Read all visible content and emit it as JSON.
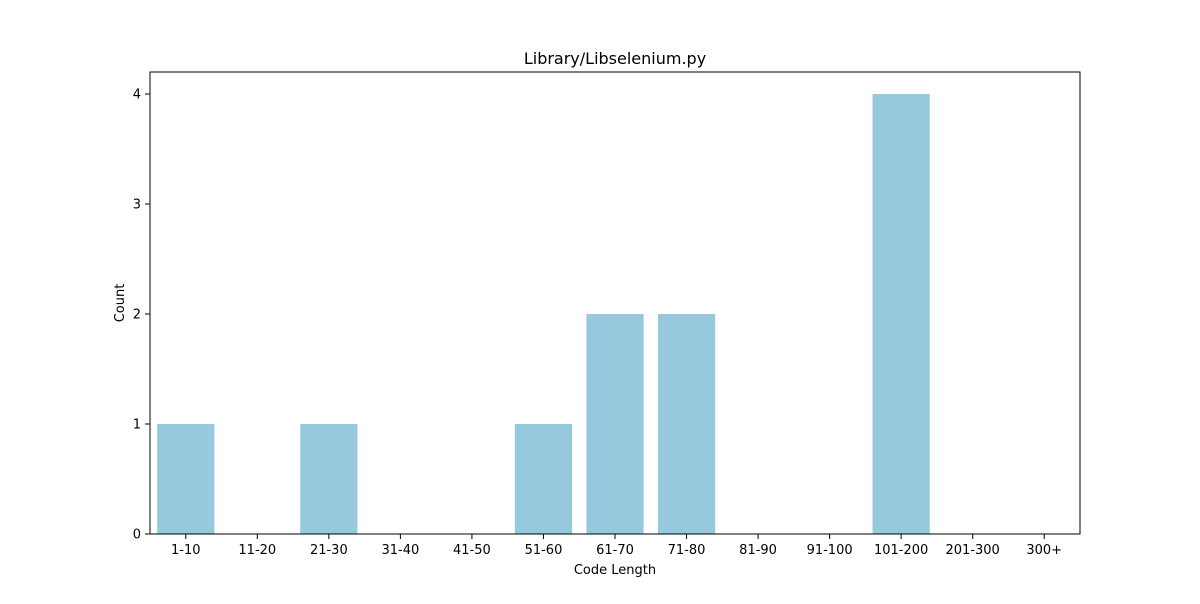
{
  "chart_data": {
    "type": "bar",
    "title": "Library/Libselenium.py",
    "xlabel": "Code Length",
    "ylabel": "Count",
    "categories": [
      "1-10",
      "11-20",
      "21-30",
      "31-40",
      "41-50",
      "51-60",
      "61-70",
      "71-80",
      "81-90",
      "91-100",
      "101-200",
      "201-300",
      "300+"
    ],
    "values": [
      1,
      0,
      1,
      0,
      0,
      1,
      2,
      2,
      0,
      0,
      4,
      0,
      0
    ],
    "ylim": [
      0,
      4.2
    ],
    "yticks": [
      0,
      1,
      2,
      3,
      4
    ],
    "bar_color": "#96c9de",
    "grid": false,
    "legend": "none"
  }
}
